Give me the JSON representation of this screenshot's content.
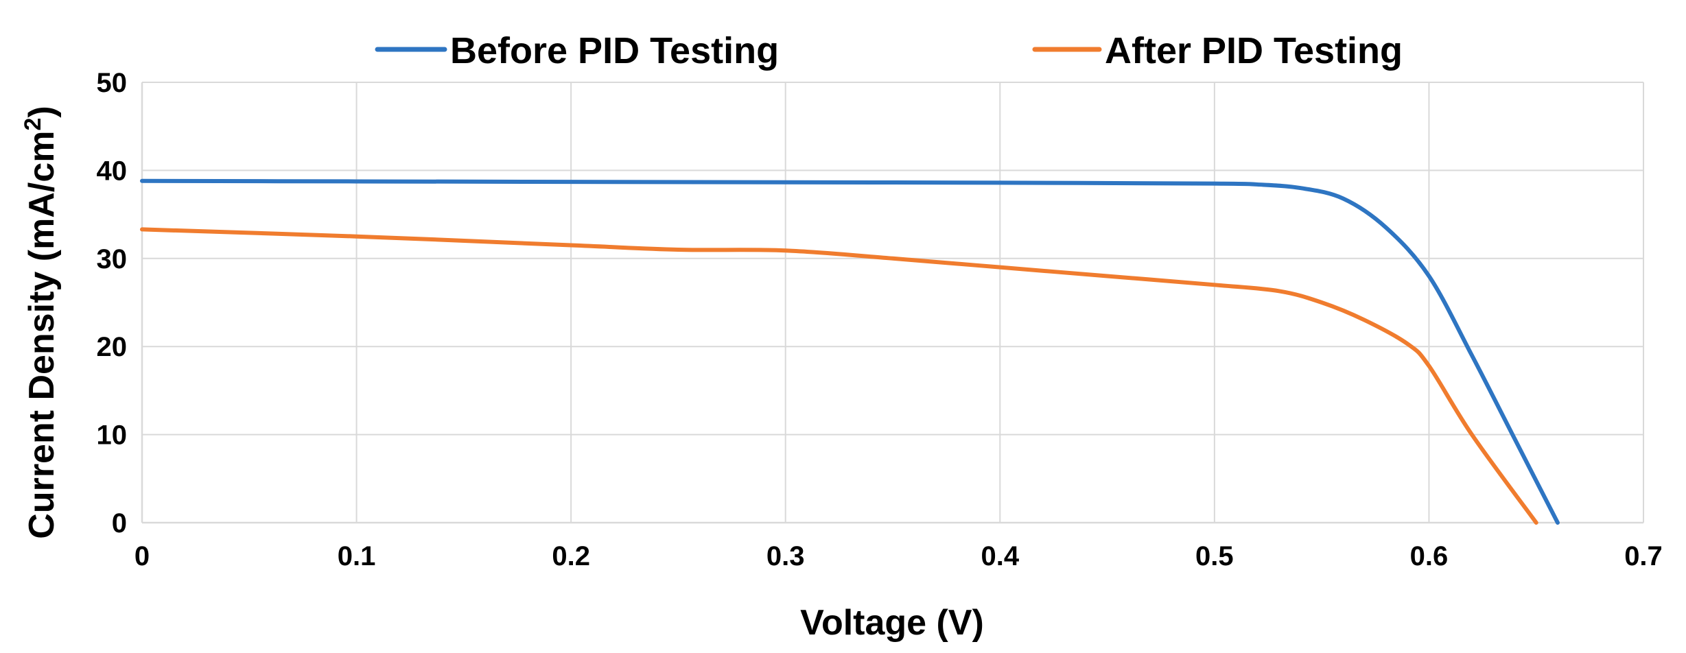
{
  "chart_data": {
    "type": "line",
    "title": "",
    "xlabel": "Voltage (V)",
    "ylabel": "Current Density (mA/cm²)",
    "ylabel_main": "Current Density (mA/cm",
    "ylabel_sup": "2",
    "ylabel_end": ")",
    "xlim": [
      0,
      0.7
    ],
    "ylim": [
      0,
      50
    ],
    "xticks": [
      "0",
      "0.1",
      "0.2",
      "0.3",
      "0.4",
      "0.5",
      "0.6",
      "0.7"
    ],
    "yticks": [
      "0",
      "10",
      "20",
      "30",
      "40",
      "50"
    ],
    "grid": true,
    "legend_position": "top",
    "series": [
      {
        "name": "Before PID Testing",
        "color": "#2e75c2",
        "x": [
          0,
          0.1,
          0.2,
          0.3,
          0.4,
          0.5,
          0.52,
          0.54,
          0.56,
          0.58,
          0.6,
          0.62,
          0.64,
          0.66
        ],
        "y": [
          38.8,
          38.75,
          38.7,
          38.65,
          38.6,
          38.5,
          38.4,
          38.0,
          36.8,
          33.5,
          28.0,
          19.0,
          9.5,
          0
        ]
      },
      {
        "name": "After PID Testing",
        "color": "#f07c2e",
        "x": [
          0,
          0.1,
          0.2,
          0.25,
          0.3,
          0.35,
          0.4,
          0.45,
          0.5,
          0.53,
          0.55,
          0.57,
          0.59,
          0.6,
          0.62,
          0.65
        ],
        "y": [
          33.3,
          32.5,
          31.5,
          31.0,
          30.9,
          30.0,
          29.0,
          28.0,
          27.0,
          26.3,
          25.0,
          23.0,
          20.3,
          17.8,
          10.0,
          0
        ]
      }
    ]
  }
}
